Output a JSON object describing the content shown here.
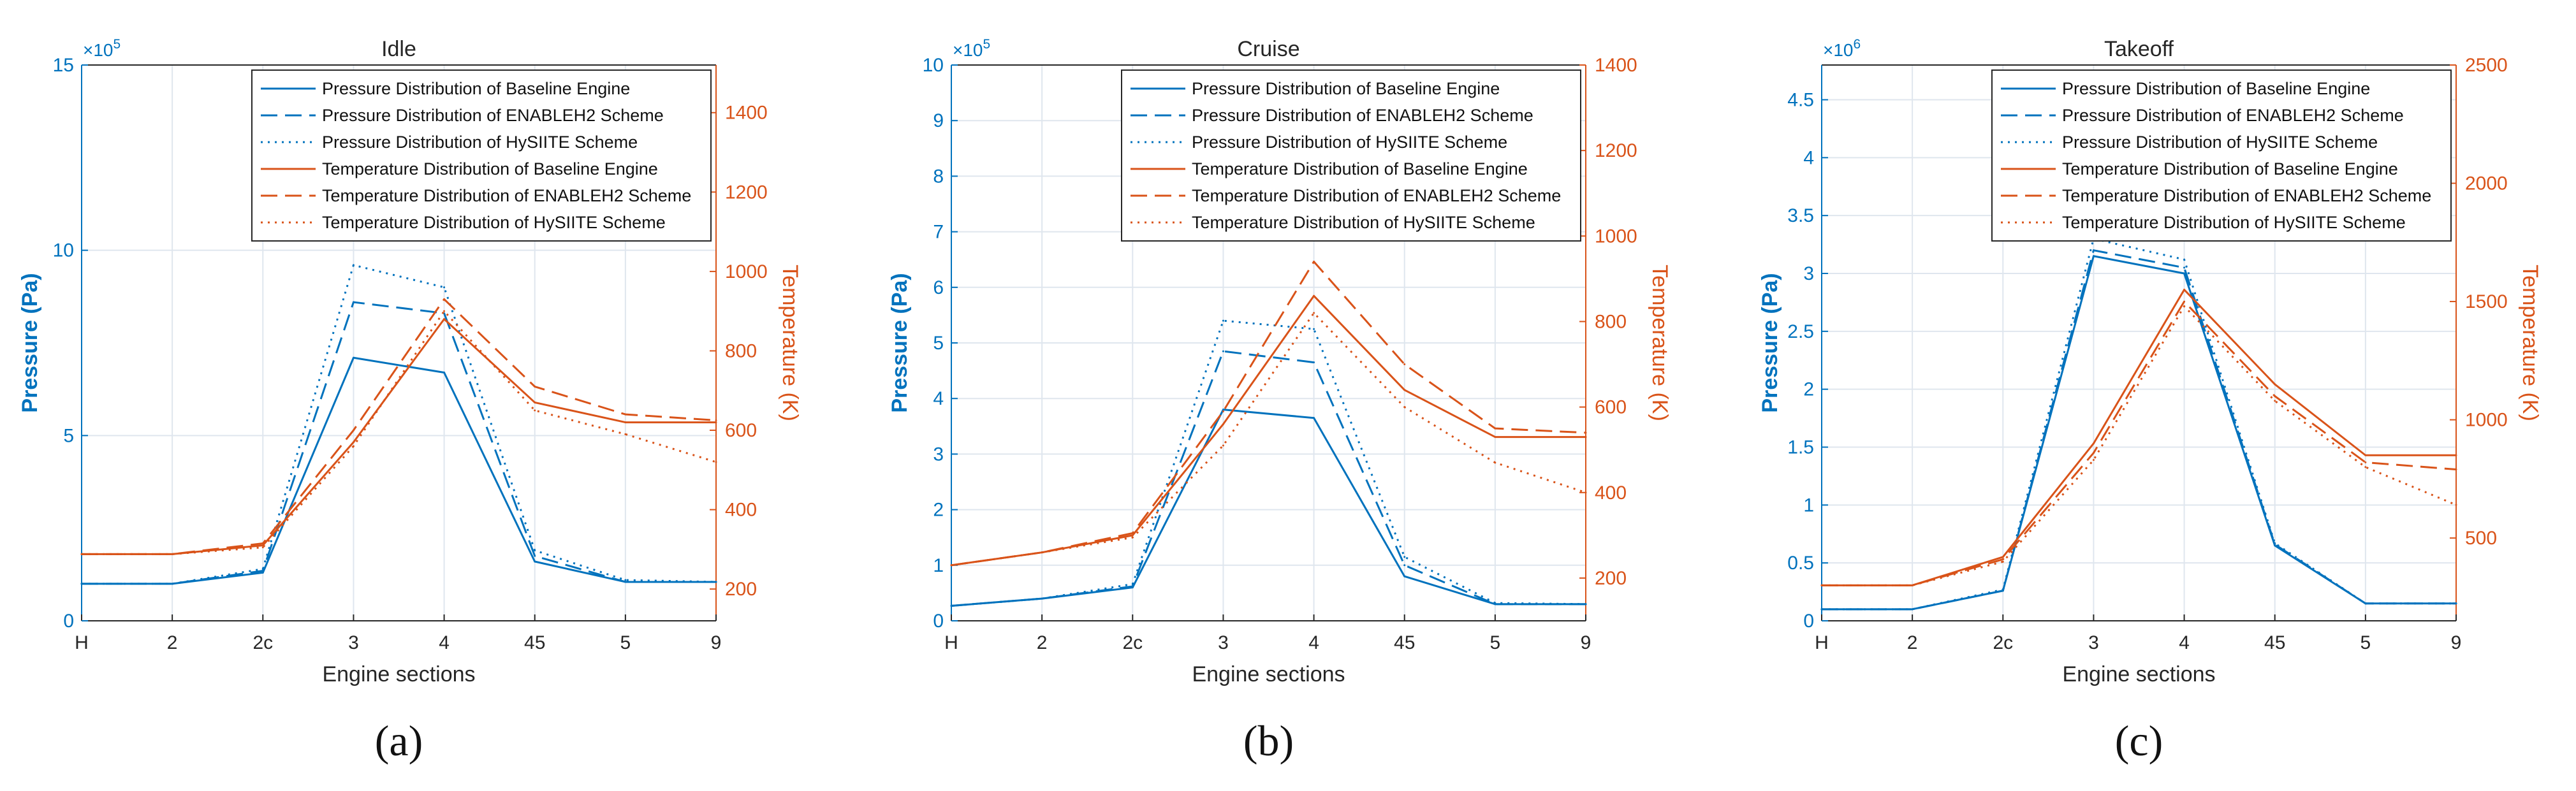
{
  "figure": {
    "panel_labels": [
      "(a)",
      "(b)",
      "(c)"
    ]
  },
  "colors": {
    "pressure": "#0072BD",
    "temperature": "#D95319",
    "grid": "#dfe6ee",
    "axes_box": "#262626"
  },
  "chart_data": [
    {
      "type": "line",
      "title": "Idle",
      "xlabel": "Engine sections",
      "ylabel_left": "Pressure (Pa)",
      "ylabel_right": "Temperature (K)",
      "left_exponent": "5",
      "categories": [
        "H",
        "2",
        "2c",
        "3",
        "4",
        "45",
        "5",
        "9"
      ],
      "ylim_left": [
        0,
        15
      ],
      "yticks_left": [
        0,
        5,
        10,
        15
      ],
      "ylim_right": [
        120,
        1520
      ],
      "yticks_right": [
        200,
        400,
        600,
        800,
        1000,
        1200,
        1400
      ],
      "grid": true,
      "legend_position": "top-right",
      "series": [
        {
          "name": "Pressure Distribution of Baseline Engine",
          "axis": "left",
          "style": "solid",
          "values": [
            1.0,
            1.0,
            1.3,
            7.1,
            6.7,
            1.6,
            1.05,
            1.05
          ]
        },
        {
          "name": "Pressure Distribution of ENABLEH2 Scheme",
          "axis": "left",
          "style": "dashed",
          "values": [
            1.0,
            1.0,
            1.35,
            8.6,
            8.3,
            1.75,
            1.05,
            1.05
          ]
        },
        {
          "name": "Pressure Distribution of HySIITE Scheme",
          "axis": "left",
          "style": "dotted",
          "values": [
            1.0,
            1.0,
            1.4,
            9.6,
            9.0,
            1.9,
            1.1,
            1.05
          ]
        },
        {
          "name": "Temperature Distribution of Baseline Engine",
          "axis": "right",
          "style": "solid",
          "values": [
            288,
            288,
            310,
            570,
            880,
            670,
            620,
            620
          ]
        },
        {
          "name": "Temperature Distribution of ENABLEH2 Scheme",
          "axis": "right",
          "style": "dashed",
          "values": [
            288,
            288,
            315,
            600,
            930,
            710,
            640,
            625
          ]
        },
        {
          "name": "Temperature Distribution of HySIITE Scheme",
          "axis": "right",
          "style": "dotted",
          "values": [
            288,
            288,
            305,
            560,
            900,
            650,
            590,
            520
          ]
        }
      ]
    },
    {
      "type": "line",
      "title": "Cruise",
      "xlabel": "Engine sections",
      "ylabel_left": "Pressure (Pa)",
      "ylabel_right": "Temperature (K)",
      "left_exponent": "5",
      "categories": [
        "H",
        "2",
        "2c",
        "3",
        "4",
        "45",
        "5",
        "9"
      ],
      "ylim_left": [
        0,
        10
      ],
      "yticks_left": [
        0,
        1,
        2,
        3,
        4,
        5,
        6,
        7,
        8,
        9,
        10
      ],
      "ylim_right": [
        100,
        1400
      ],
      "yticks_right": [
        200,
        400,
        600,
        800,
        1000,
        1200,
        1400
      ],
      "grid": true,
      "legend_position": "top-right",
      "series": [
        {
          "name": "Pressure Distribution of Baseline Engine",
          "axis": "left",
          "style": "solid",
          "values": [
            0.27,
            0.4,
            0.6,
            3.8,
            3.65,
            0.8,
            0.3,
            0.3
          ]
        },
        {
          "name": "Pressure Distribution of ENABLEH2 Scheme",
          "axis": "left",
          "style": "dashed",
          "values": [
            0.27,
            0.4,
            0.62,
            4.85,
            4.65,
            1.0,
            0.3,
            0.3
          ]
        },
        {
          "name": "Pressure Distribution of HySIITE Scheme",
          "axis": "left",
          "style": "dotted",
          "values": [
            0.27,
            0.4,
            0.66,
            5.4,
            5.25,
            1.15,
            0.32,
            0.3
          ]
        },
        {
          "name": "Temperature Distribution of Baseline Engine",
          "axis": "right",
          "style": "solid",
          "values": [
            230,
            260,
            300,
            560,
            860,
            640,
            530,
            530
          ]
        },
        {
          "name": "Temperature Distribution of ENABLEH2 Scheme",
          "axis": "right",
          "style": "dashed",
          "values": [
            230,
            260,
            305,
            590,
            940,
            700,
            550,
            540
          ]
        },
        {
          "name": "Temperature Distribution of HySIITE Scheme",
          "axis": "right",
          "style": "dotted",
          "values": [
            230,
            260,
            295,
            510,
            820,
            600,
            470,
            400
          ]
        }
      ]
    },
    {
      "type": "line",
      "title": "Takeoff",
      "xlabel": "Engine sections",
      "ylabel_left": "Pressure (Pa)",
      "ylabel_right": "Temperature (K)",
      "left_exponent": "6",
      "categories": [
        "H",
        "2",
        "2c",
        "3",
        "4",
        "45",
        "5",
        "9"
      ],
      "ylim_left": [
        0,
        4.8
      ],
      "yticks_left": [
        0,
        0.5,
        1,
        1.5,
        2,
        2.5,
        3,
        3.5,
        4,
        4.5
      ],
      "ylim_right": [
        150,
        2500
      ],
      "yticks_right": [
        500,
        1000,
        1500,
        2000,
        2500
      ],
      "grid": true,
      "legend_position": "top-right",
      "series": [
        {
          "name": "Pressure Distribution of Baseline Engine",
          "axis": "left",
          "style": "solid",
          "values": [
            0.1,
            0.1,
            0.26,
            3.15,
            3.0,
            0.65,
            0.15,
            0.15
          ]
        },
        {
          "name": "Pressure Distribution of ENABLEH2 Scheme",
          "axis": "left",
          "style": "dashed",
          "values": [
            0.1,
            0.1,
            0.26,
            3.2,
            3.05,
            0.66,
            0.15,
            0.15
          ]
        },
        {
          "name": "Pressure Distribution of HySIITE Scheme",
          "axis": "left",
          "style": "dotted",
          "values": [
            0.1,
            0.1,
            0.27,
            3.3,
            3.12,
            0.67,
            0.15,
            0.15
          ]
        },
        {
          "name": "Temperature Distribution of Baseline Engine",
          "axis": "right",
          "style": "solid",
          "values": [
            300,
            300,
            420,
            900,
            1550,
            1150,
            850,
            850
          ]
        },
        {
          "name": "Temperature Distribution of ENABLEH2 Scheme",
          "axis": "right",
          "style": "dashed",
          "values": [
            300,
            300,
            410,
            860,
            1500,
            1100,
            820,
            790
          ]
        },
        {
          "name": "Temperature Distribution of HySIITE Scheme",
          "axis": "right",
          "style": "dotted",
          "values": [
            300,
            300,
            400,
            830,
            1480,
            1080,
            800,
            640
          ]
        }
      ]
    }
  ]
}
